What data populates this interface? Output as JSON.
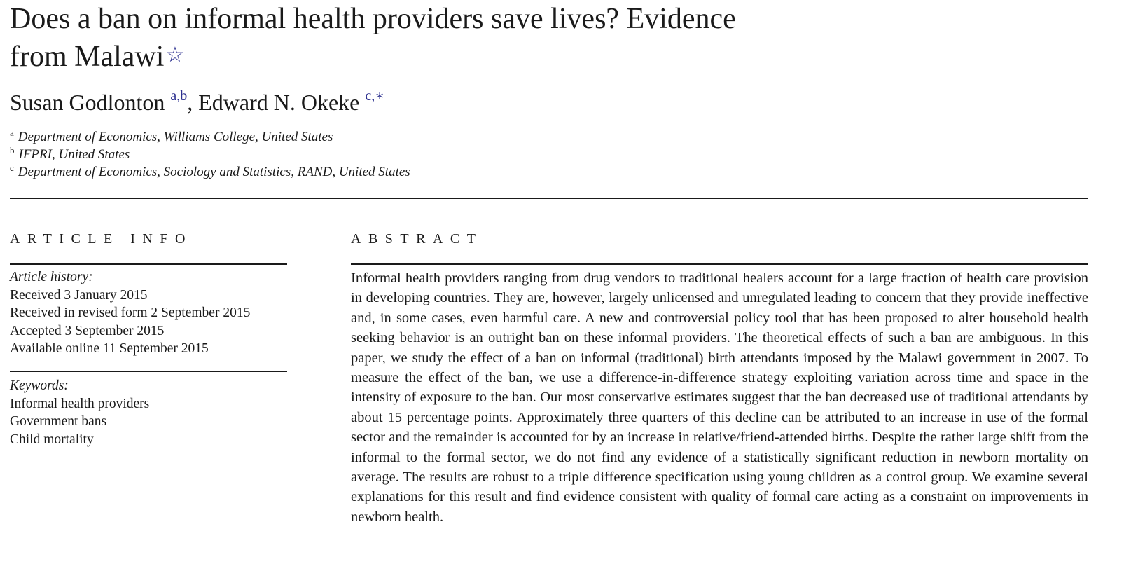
{
  "title": {
    "line1": "Does a ban on informal health providers save lives? Evidence",
    "line2": "from Malawi",
    "footnote_mark": "☆"
  },
  "authors": [
    {
      "name": "Susan Godlonton",
      "marks": "a,b",
      "separator": ", "
    },
    {
      "name": "Edward N. Okeke",
      "marks": "c,∗",
      "separator": ""
    }
  ],
  "affiliations": [
    {
      "mark": "a",
      "text": "Department of Economics, Williams College, United States"
    },
    {
      "mark": "b",
      "text": "IFPRI, United States"
    },
    {
      "mark": "c",
      "text": "Department of Economics, Sociology and Statistics, RAND, United States"
    }
  ],
  "article_info": {
    "heading": "ARTICLE INFO",
    "history_label": "Article history:",
    "history": [
      "Received 3 January 2015",
      "Received in revised form 2 September 2015",
      "Accepted 3 September 2015",
      "Available online 11 September 2015"
    ],
    "keywords_label": "Keywords:",
    "keywords": [
      "Informal health providers",
      "Government bans",
      "Child mortality"
    ]
  },
  "abstract": {
    "heading": "ABSTRACT",
    "text": "Informal health providers ranging from drug vendors to traditional healers account for a large fraction of health care provision in developing countries. They are, however, largely unlicensed and unregulated leading to concern that they provide ineffective and, in some cases, even harmful care. A new and controversial policy tool that has been proposed to alter household health seeking behavior is an outright ban on these informal providers. The theoretical effects of such a ban are ambiguous. In this paper, we study the effect of a ban on informal (traditional) birth attendants imposed by the Malawi government in 2007. To measure the effect of the ban, we use a difference-in-difference strategy exploiting variation across time and space in the intensity of exposure to the ban. Our most conservative estimates suggest that the ban decreased use of traditional attendants by about 15 percentage points. Approximately three quarters of this decline can be attributed to an increase in use of the formal sector and the remainder is accounted for by an increase in relative/friend-attended births. Despite the rather large shift from the informal to the formal sector, we do not find any evidence of a statistically signif­icant reduction in newborn mortality on average. The results are robust to a triple difference specification using young children as a control group. We examine several explanations for this result and find evidence consistent with quality of formal care acting as a constraint on improvements in newborn health."
  },
  "colors": {
    "text": "#1a1a1a",
    "link": "#2b2f8f"
  }
}
